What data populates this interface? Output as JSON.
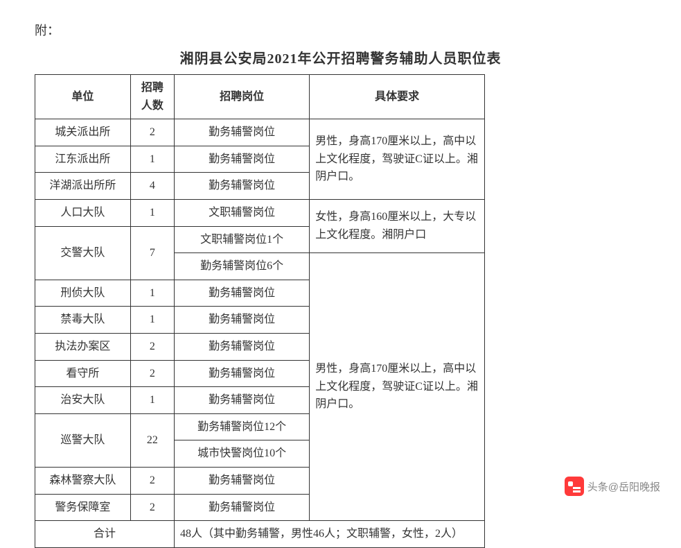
{
  "attachment": "附：",
  "title": "湘阴县公安局2021年公开招聘警务辅助人员职位表",
  "headers": {
    "unit": "单位",
    "count": "招聘\n人数",
    "position": "招聘岗位",
    "requirement": "具体要求"
  },
  "rows": {
    "r1_unit": "城关派出所",
    "r1_count": "2",
    "r1_pos": "勤务辅警岗位",
    "r2_unit": "江东派出所",
    "r2_count": "1",
    "r2_pos": "勤务辅警岗位",
    "r3_unit": "洋湖派出所所",
    "r3_count": "4",
    "r3_pos": "勤务辅警岗位",
    "r4_unit": "人口大队",
    "r4_count": "1",
    "r4_pos": "文职辅警岗位",
    "r5_unit": "交警大队",
    "r5_count": "7",
    "r5a_pos": "文职辅警岗位1个",
    "r5b_pos": "勤务辅警岗位6个",
    "r6_unit": "刑侦大队",
    "r6_count": "1",
    "r6_pos": "勤务辅警岗位",
    "r7_unit": "禁毒大队",
    "r7_count": "1",
    "r7_pos": "勤务辅警岗位",
    "r8_unit": "执法办案区",
    "r8_count": "2",
    "r8_pos": "勤务辅警岗位",
    "r9_unit": "看守所",
    "r9_count": "2",
    "r9_pos": "勤务辅警岗位",
    "r10_unit": "治安大队",
    "r10_count": "1",
    "r10_pos": "勤务辅警岗位",
    "r11_unit": "巡警大队",
    "r11_count": "22",
    "r11a_pos": "勤务辅警岗位12个",
    "r11b_pos": "城市快警岗位10个",
    "r12_unit": "森林警察大队",
    "r12_count": "2",
    "r12_pos": "勤务辅警岗位",
    "r13_unit": "警务保障室",
    "r13_count": "2",
    "r13_pos": "勤务辅警岗位",
    "total_label": "合计",
    "total_text": "48人（其中勤务辅警，男性46人；文职辅警，女性，2人）"
  },
  "requirements": {
    "req1": "男性，身高170厘米以上，高中以上文化程度，驾驶证C证以上。湘阴户口。",
    "req2": "女性，身高160厘米以上，大专以上文化程度。湘阴户口",
    "req3": "男性，身高170厘米以上，高中以上文化程度，驾驶证C证以上。湘阴户口。"
  },
  "watermark": "头条@岳阳晚报",
  "style": {
    "table_border_color": "#333333",
    "font_family": "SimSun",
    "title_fontsize": 20,
    "cell_fontsize": 16,
    "background_color": "#ffffff",
    "text_color": "#333333",
    "watermark_color": "#888888",
    "watermark_icon_color": "#ff3a3a"
  }
}
